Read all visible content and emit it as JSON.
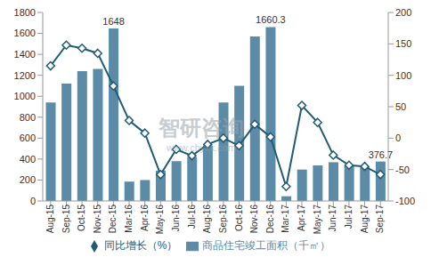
{
  "chart_data": {
    "type": "bar_line",
    "categories": [
      "Aug-15",
      "Sep-15",
      "Oct-15",
      "Nov-15",
      "Dec-15",
      "Mar-16",
      "Apr-16",
      "May-16",
      "Jun-16",
      "Jul-16",
      "Aug-16",
      "Sep-16",
      "Oct-16",
      "Nov-16",
      "Dec-16",
      "Mar-17",
      "Apr-17",
      "May-17",
      "Jun-17",
      "Jul-17",
      "Aug-17",
      "Sep-17"
    ],
    "series": [
      {
        "name": "商品住宅竣工面积（千㎡）",
        "type": "bar",
        "color": "#5b8ba6",
        "values": [
          940,
          1120,
          1240,
          1260,
          1648,
          185,
          200,
          290,
          380,
          420,
          530,
          940,
          1100,
          1570,
          1660.3,
          45,
          300,
          340,
          370,
          340,
          320,
          376.7
        ],
        "value_labels": [
          null,
          null,
          null,
          null,
          "1648",
          null,
          null,
          null,
          null,
          null,
          null,
          null,
          null,
          null,
          "1660.3",
          null,
          null,
          null,
          null,
          null,
          null,
          "376.7"
        ]
      },
      {
        "name": "同比增长（%）",
        "type": "line",
        "color": "#1f5b74",
        "marker": "diamond",
        "axis": "y2",
        "values": [
          115,
          148,
          143,
          135,
          83,
          28,
          8,
          -58,
          -18,
          -28,
          -10,
          0,
          -12,
          22,
          2,
          -77,
          52,
          25,
          -27,
          -43,
          -45,
          -58
        ]
      }
    ],
    "ylim": [
      0,
      1800
    ],
    "yticks": [
      0,
      200,
      400,
      600,
      800,
      1000,
      1200,
      1400,
      1600,
      1800
    ],
    "y2lim": [
      -100,
      200
    ],
    "y2ticks": [
      -100,
      -50,
      0,
      50,
      100,
      150,
      200
    ],
    "grid": false,
    "legend": "bottom",
    "annotations": [
      "智研咨询",
      "www.chyxx.com"
    ]
  }
}
